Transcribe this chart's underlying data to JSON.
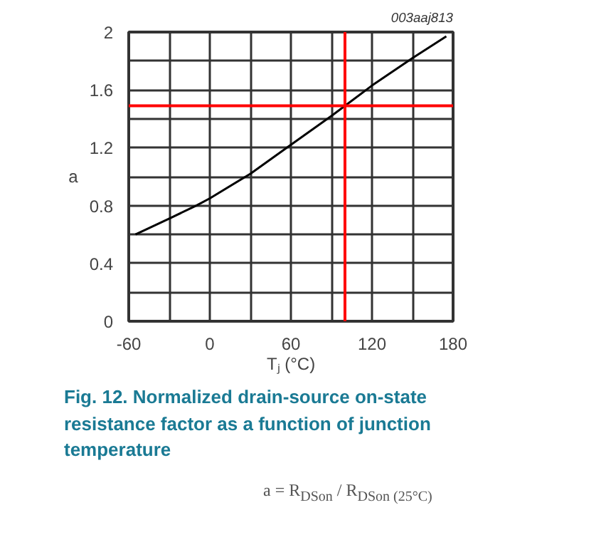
{
  "chart_data": {
    "type": "line",
    "title": "Fig. 12.  Normalized drain-source on-state resistance factor as a function of junction temperature",
    "xlabel": "Tⱼ (°C)",
    "ylabel": "a",
    "series": [
      {
        "color": "#000000",
        "x": [
          -55,
          -30,
          -10,
          0,
          30,
          60,
          90,
          120,
          150,
          175
        ],
        "values": [
          0.6,
          0.71,
          0.8,
          0.85,
          1.02,
          1.22,
          1.42,
          1.63,
          1.82,
          1.97
        ]
      }
    ],
    "xlim": [
      -60,
      180
    ],
    "ylim": [
      0,
      2
    ],
    "xticks": [
      -60,
      {
        "value": -30,
        "label": null
      },
      0,
      {
        "value": 30,
        "label": null
      },
      60,
      {
        "value": 90,
        "label": null
      },
      120,
      {
        "value": 150,
        "label": null
      },
      180
    ],
    "yticks": [
      0,
      {
        "value": 0.2,
        "label": null
      },
      0.4,
      {
        "value": 0.6,
        "label": null
      },
      0.8,
      {
        "value": 1.0,
        "label": null
      },
      1.2,
      {
        "value": 1.4,
        "label": null
      },
      1.6,
      {
        "value": 1.8,
        "label": null
      },
      2
    ],
    "grid": true,
    "line_style": "solid",
    "ref_lines": [
      {
        "axis": "y",
        "value": 1.49,
        "color": "#ff0000"
      },
      {
        "axis": "x",
        "value": 100,
        "color": "#ff0000"
      }
    ],
    "annotations": [
      "003aaj813",
      "a = R$_{DSon}$ / R$_{DSon (25°C)}$"
    ]
  }
}
